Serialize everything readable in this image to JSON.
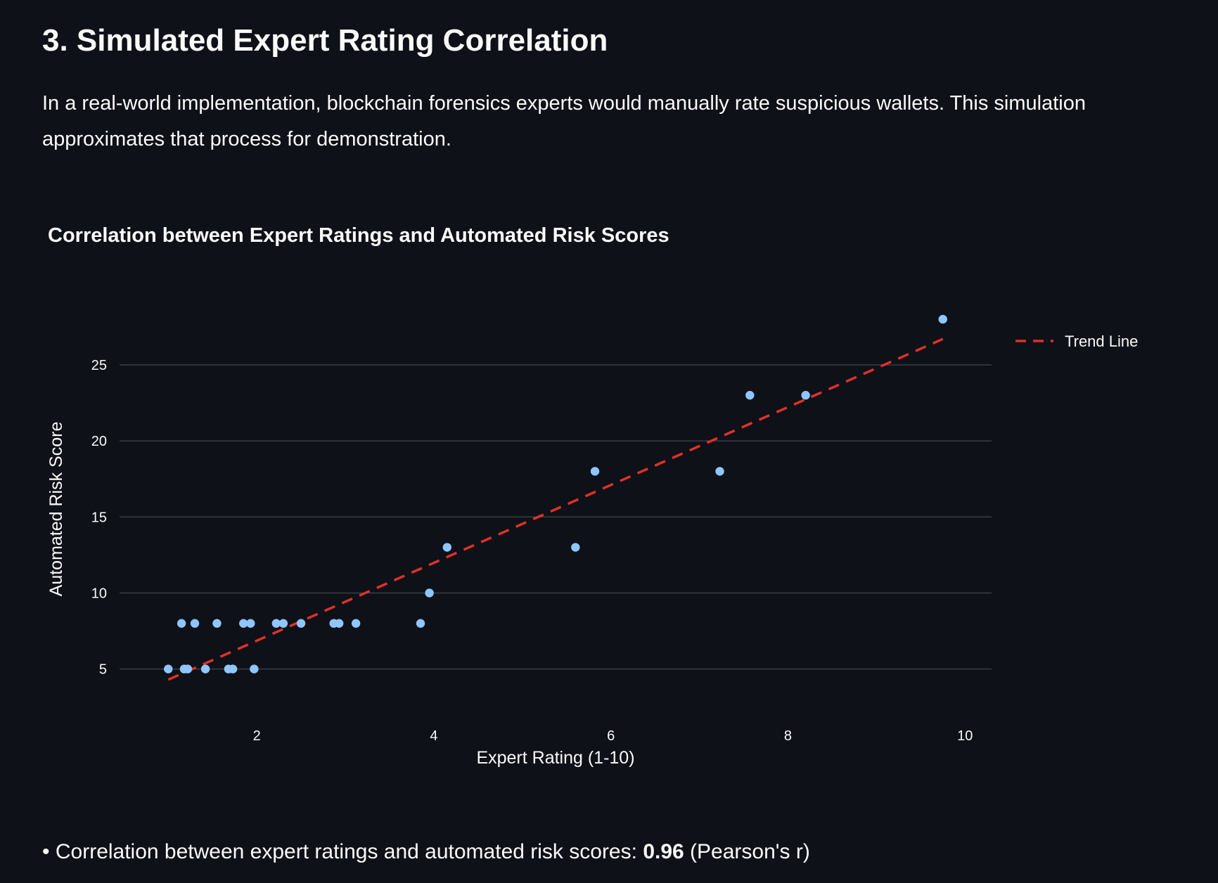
{
  "section": {
    "title": "3. Simulated Expert Rating Correlation",
    "description": "In a real-world implementation, blockchain forensics experts would manually rate suspicious wallets. This simulation approximates that process for demonstration."
  },
  "summary": {
    "bullet": "•",
    "prefix": "Correlation between expert ratings and automated risk scores:",
    "value": "0.96",
    "suffix": "(Pearson's r)"
  },
  "chart_data": {
    "type": "scatter",
    "title": "Correlation between Expert Ratings and Automated Risk Scores",
    "xlabel": "Expert Rating (1-10)",
    "ylabel": "Automated Risk Score",
    "xlim": [
      0.45,
      10.3
    ],
    "ylim": [
      2.3,
      30.5
    ],
    "xticks": [
      2,
      4,
      6,
      8,
      10
    ],
    "yticks": [
      5,
      10,
      15,
      20,
      25
    ],
    "grid": "horizontal",
    "legend_position": "top-right",
    "colors": {
      "points": "#8fc6ff",
      "trend": "#e0302a",
      "grid": "#393d46",
      "background": "#0e1117"
    },
    "series": [
      {
        "type": "scatter",
        "x": [
          1.0,
          1.15,
          1.3,
          1.55,
          1.85,
          1.93,
          2.22,
          2.3,
          2.5,
          2.87,
          2.93,
          3.12,
          3.85,
          1.18,
          1.22,
          1.42,
          1.68,
          1.73,
          1.97,
          3.95,
          4.15,
          5.6,
          5.82,
          7.23,
          7.57,
          8.2,
          9.75
        ],
        "y": [
          5,
          8,
          8,
          8,
          8,
          8,
          8,
          8,
          8,
          8,
          8,
          8,
          8,
          5,
          5,
          5,
          5,
          5,
          5,
          10,
          13,
          13,
          18,
          18,
          23,
          23,
          28
        ]
      },
      {
        "name": "Trend Line",
        "type": "line",
        "style": "dashed",
        "x": [
          1.0,
          9.75
        ],
        "y": [
          4.3,
          26.7
        ]
      }
    ]
  }
}
